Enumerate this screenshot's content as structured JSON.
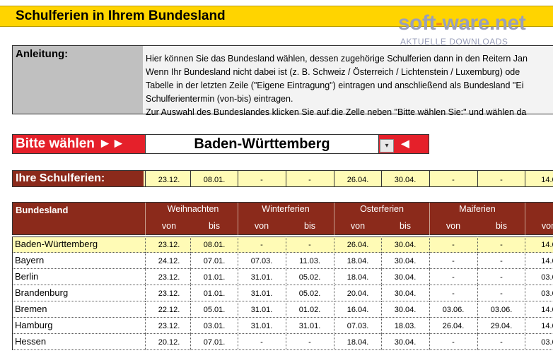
{
  "header": {
    "title": "Schulferien in Ihrem Bundesland"
  },
  "watermark": {
    "brand_main": "soft",
    "brand_dash": "-",
    "brand_rest": "ware.net",
    "subtitle": "AKTUELLE DOWNLOADS"
  },
  "instructions": {
    "label": "Anleitung:",
    "lines": [
      "Hier können Sie das Bundesland wählen, dessen zugehörige Schulferien dann in den Reitern Jan",
      "Wenn Ihr Bundesland nicht dabei ist (z. B. Schweiz / Österreich / Lichtenstein / Luxemburg) ode",
      "Tabelle in der letzten Zeile (\"Eigene Eintragung\") eintragen und anschließend als Bundesland \"Ei",
      "Schulferientermin (von-bis) eintragen.",
      "Zur Auswahl des Bundeslandes klicken Sie auf die Zelle neben \"Bitte wählen Sie:\" und wählen da"
    ]
  },
  "selector": {
    "label": "Bitte wählen ►►",
    "value": "Baden-Württemberg",
    "arrow": "◄",
    "dropdown_icon": "▾"
  },
  "your_holidays": {
    "label": "Ihre Schulferien:",
    "values": [
      "23.12.",
      "08.01.",
      "-",
      "-",
      "26.04.",
      "30.04.",
      "-",
      "-",
      "14.0"
    ]
  },
  "table": {
    "state_header": "Bundesland",
    "groups": [
      "Weihnachten",
      "Winterferien",
      "Osterferien",
      "Maiferien",
      "Pf"
    ],
    "subheaders": [
      "von",
      "bis",
      "von",
      "bis",
      "von",
      "bis",
      "von",
      "bis",
      "von"
    ],
    "rows": [
      {
        "name": "Baden-Württemberg",
        "values": [
          "23.12.",
          "08.01.",
          "-",
          "-",
          "26.04.",
          "30.04.",
          "-",
          "-",
          "14.0"
        ]
      },
      {
        "name": "Bayern",
        "values": [
          "24.12.",
          "07.01.",
          "07.03.",
          "11.03.",
          "18.04.",
          "30.04.",
          "-",
          "-",
          "14.0"
        ]
      },
      {
        "name": "Berlin",
        "values": [
          "23.12.",
          "01.01.",
          "31.01.",
          "05.02.",
          "18.04.",
          "30.04.",
          "-",
          "-",
          "03.0"
        ]
      },
      {
        "name": "Brandenburg",
        "values": [
          "23.12.",
          "01.01.",
          "31.01.",
          "05.02.",
          "20.04.",
          "30.04.",
          "-",
          "-",
          "03.0"
        ]
      },
      {
        "name": "Bremen",
        "values": [
          "22.12.",
          "05.01.",
          "31.01.",
          "01.02.",
          "16.04.",
          "30.04.",
          "03.06.",
          "03.06.",
          "14.0"
        ]
      },
      {
        "name": "Hamburg",
        "values": [
          "23.12.",
          "03.01.",
          "31.01.",
          "31.01.",
          "07.03.",
          "18.03.",
          "26.04.",
          "29.04.",
          "14.0"
        ]
      },
      {
        "name": "Hessen",
        "values": [
          "20.12.",
          "07.01.",
          "-",
          "-",
          "18.04.",
          "30.04.",
          "-",
          "-",
          "03.0"
        ]
      }
    ]
  }
}
